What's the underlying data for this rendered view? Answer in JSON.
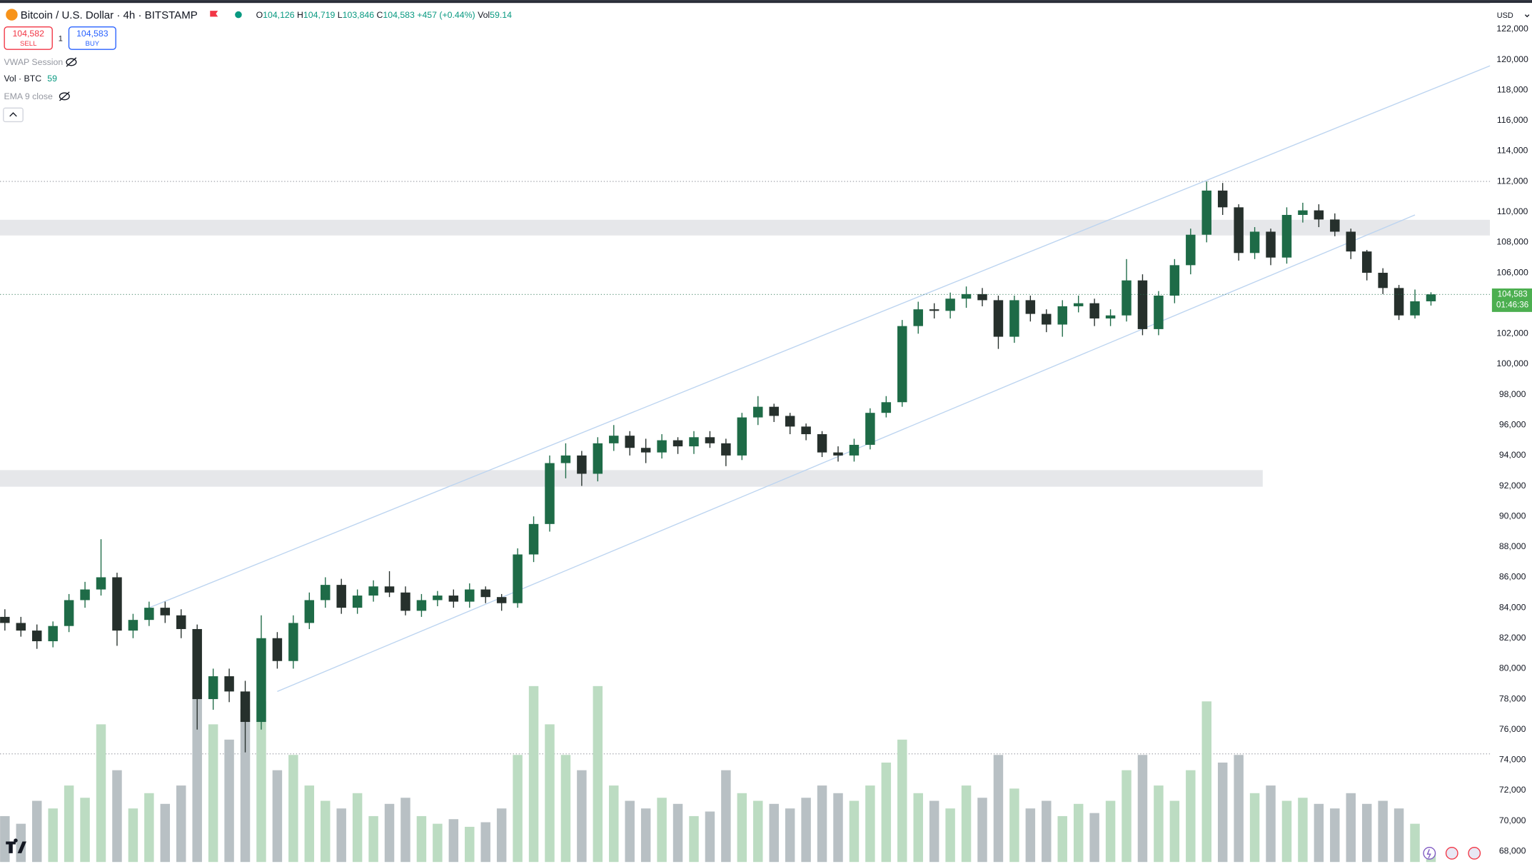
{
  "header": {
    "symbol": "Bitcoin / U.S. Dollar · 4h · BITSTAMP",
    "ohlc": [
      {
        "label": "O",
        "value": "104,126"
      },
      {
        "label": "H",
        "value": "104,719"
      },
      {
        "label": "L",
        "value": "103,846"
      },
      {
        "label": "C",
        "value": "104,583"
      }
    ],
    "change": "+457 (+0.44%)",
    "volume_label": "Vol",
    "volume_value": "59.14",
    "sell": {
      "price": "104,582",
      "label": "SELL"
    },
    "spread": "1",
    "buy": {
      "price": "104,583",
      "label": "BUY"
    },
    "indicators": [
      {
        "name": "VWAP Session"
      },
      {
        "name": "Vol · BTC",
        "value": "59"
      },
      {
        "name": "EMA 9 close"
      }
    ],
    "currency": "USD",
    "price_tag": "104,583",
    "countdown": "01:46:36"
  },
  "chart_data": {
    "type": "candlestick",
    "ylim": [
      67300,
      123400
    ],
    "yticks": [
      {
        "value": 68000,
        "label": "68,000"
      },
      {
        "value": 70000,
        "label": "70,000"
      },
      {
        "value": 72000,
        "label": "72,000"
      },
      {
        "value": 74000,
        "label": "74,000"
      },
      {
        "value": 76000,
        "label": "76,000"
      },
      {
        "value": 78000,
        "label": "78,000"
      },
      {
        "value": 80000,
        "label": "80,000"
      },
      {
        "value": 82000,
        "label": "82,000"
      },
      {
        "value": 84000,
        "label": "84,000"
      },
      {
        "value": 86000,
        "label": "86,000"
      },
      {
        "value": 88000,
        "label": "88,000"
      },
      {
        "value": 90000,
        "label": "90,000"
      },
      {
        "value": 92000,
        "label": "92,000"
      },
      {
        "value": 94000,
        "label": "94,000"
      },
      {
        "value": 96000,
        "label": "96,000"
      },
      {
        "value": 98000,
        "label": "98,000"
      },
      {
        "value": 100000,
        "label": "100,000"
      },
      {
        "value": 102000,
        "label": "102,000"
      },
      {
        "value": 104000,
        "label": "104,000"
      },
      {
        "value": 106000,
        "label": "106,000"
      },
      {
        "value": 108000,
        "label": "108,000"
      },
      {
        "value": 110000,
        "label": "110,000"
      },
      {
        "value": 112000,
        "label": "112,000"
      },
      {
        "value": 114000,
        "label": "114,000"
      },
      {
        "value": 116000,
        "label": "116,000"
      },
      {
        "value": 118000,
        "label": "118,000"
      },
      {
        "value": 120000,
        "label": "120,000"
      },
      {
        "value": 122000,
        "label": "122,000"
      }
    ],
    "grid": false,
    "up_color": "#1e6b47",
    "down_color": "#26302c",
    "volume_up_color": "#bcdcc2",
    "volume_down_color": "#b8c0c4",
    "open": [
      83400,
      83000,
      82500,
      81800,
      82800,
      84500,
      85200,
      86000,
      82500,
      83200,
      84000,
      83500,
      82600,
      78000,
      79500,
      78500,
      76500,
      82000,
      80500,
      83000,
      84500,
      85500,
      84000,
      84800,
      85400,
      85000,
      83800,
      84500,
      84800,
      84400,
      85200,
      84700,
      84300,
      87500,
      89500,
      93500,
      94000,
      92800,
      94800,
      95300,
      94500,
      94200,
      95000,
      94600,
      95200,
      94800,
      94000,
      96500,
      97200,
      96600,
      95900,
      95400,
      94200,
      94000,
      94700,
      96800,
      97500,
      102500,
      103600,
      103500,
      104300,
      104600,
      104200,
      101800,
      104200,
      103300,
      102600,
      103800,
      104000,
      103000,
      103200,
      105500,
      102300,
      104500,
      106500,
      108500,
      111400,
      110300,
      107300,
      108700,
      107000,
      109800,
      110100,
      109500,
      108700,
      107400,
      106000,
      105000,
      103200,
      104126
    ],
    "high": [
      83900,
      83400,
      82900,
      83100,
      84900,
      85700,
      88500,
      86300,
      83600,
      84400,
      84400,
      83900,
      82900,
      80000,
      80000,
      79200,
      83500,
      82400,
      83500,
      85000,
      86000,
      85900,
      85200,
      85800,
      86400,
      85400,
      84900,
      85100,
      85200,
      85600,
      85400,
      84900,
      87900,
      90000,
      94000,
      94800,
      94300,
      95200,
      96000,
      95600,
      95100,
      95400,
      95200,
      95600,
      95600,
      95100,
      96800,
      97900,
      97400,
      96800,
      96100,
      95600,
      94600,
      95100,
      97100,
      97900,
      102900,
      104100,
      104000,
      104700,
      105100,
      105000,
      104500,
      104500,
      104500,
      103600,
      104200,
      104500,
      104300,
      103600,
      106900,
      105900,
      104800,
      106900,
      108900,
      112000,
      111900,
      110500,
      109000,
      108900,
      110300,
      110600,
      110500,
      109900,
      108900,
      107500,
      106300,
      105200,
      104900,
      104719
    ],
    "low": [
      82500,
      82100,
      81300,
      81400,
      82400,
      84000,
      84800,
      81500,
      82000,
      82800,
      83000,
      82000,
      76000,
      77300,
      77800,
      74500,
      76000,
      80000,
      80000,
      82600,
      84000,
      83600,
      83600,
      84400,
      84700,
      83500,
      83400,
      84100,
      84000,
      84000,
      84300,
      83800,
      84000,
      87000,
      89000,
      92500,
      92000,
      92300,
      94300,
      94000,
      93500,
      93800,
      94100,
      94100,
      94500,
      93300,
      93700,
      96000,
      96200,
      95400,
      95000,
      93900,
      93600,
      93600,
      94400,
      96500,
      97200,
      102000,
      103000,
      103000,
      103700,
      103800,
      101000,
      101400,
      102800,
      102100,
      101800,
      103400,
      102500,
      102500,
      102800,
      101900,
      101900,
      104000,
      105900,
      108000,
      109800,
      106800,
      106900,
      106500,
      106600,
      109300,
      109000,
      108400,
      106900,
      105500,
      104600,
      102900,
      103000,
      103846
    ],
    "close": [
      83000,
      82500,
      81800,
      82800,
      84500,
      85200,
      86000,
      82500,
      83200,
      84000,
      83500,
      82600,
      78000,
      79500,
      78500,
      76500,
      82000,
      80500,
      83000,
      84500,
      85500,
      84000,
      84800,
      85400,
      85000,
      83800,
      84500,
      84800,
      84400,
      85200,
      84700,
      84300,
      87500,
      89500,
      93500,
      94000,
      92800,
      94800,
      95300,
      94500,
      94200,
      95000,
      94600,
      95200,
      94800,
      94000,
      96500,
      97200,
      96600,
      95900,
      95400,
      94200,
      94000,
      94700,
      96800,
      97500,
      102500,
      103600,
      103500,
      104300,
      104600,
      104200,
      101800,
      104200,
      103300,
      102600,
      103800,
      104000,
      103000,
      103200,
      105500,
      102300,
      104500,
      106500,
      108500,
      111400,
      110300,
      107300,
      108700,
      107000,
      109800,
      110100,
      109500,
      108700,
      107400,
      106000,
      105000,
      103200,
      104126,
      104583
    ],
    "volume": [
      300,
      250,
      400,
      350,
      500,
      420,
      900,
      600,
      350,
      450,
      380,
      500,
      1100,
      900,
      800,
      1000,
      1050,
      600,
      700,
      500,
      400,
      350,
      450,
      300,
      380,
      420,
      300,
      250,
      280,
      230,
      260,
      350,
      700,
      1150,
      900,
      700,
      600,
      1150,
      500,
      400,
      350,
      420,
      380,
      300,
      330,
      600,
      450,
      400,
      380,
      350,
      420,
      500,
      450,
      400,
      500,
      650,
      800,
      450,
      400,
      350,
      500,
      420,
      700,
      480,
      350,
      400,
      300,
      380,
      320,
      400,
      600,
      700,
      500,
      400,
      600,
      1050,
      650,
      700,
      450,
      500,
      400,
      420,
      380,
      350,
      450,
      380,
      400,
      350,
      250,
      59.14
    ],
    "zones": [
      {
        "from": 108450,
        "to": 109480,
        "end": 93
      },
      {
        "from": 91950,
        "to": 93040,
        "end": 78.5
      }
    ],
    "hlines": [
      112000,
      74400
    ],
    "trendlines": [
      {
        "points": [
          [
            9,
            84000
          ],
          [
            92.7,
            119600
          ]
        ]
      },
      {
        "points": [
          [
            17,
            78500
          ],
          [
            88,
            109800
          ]
        ]
      }
    ]
  }
}
